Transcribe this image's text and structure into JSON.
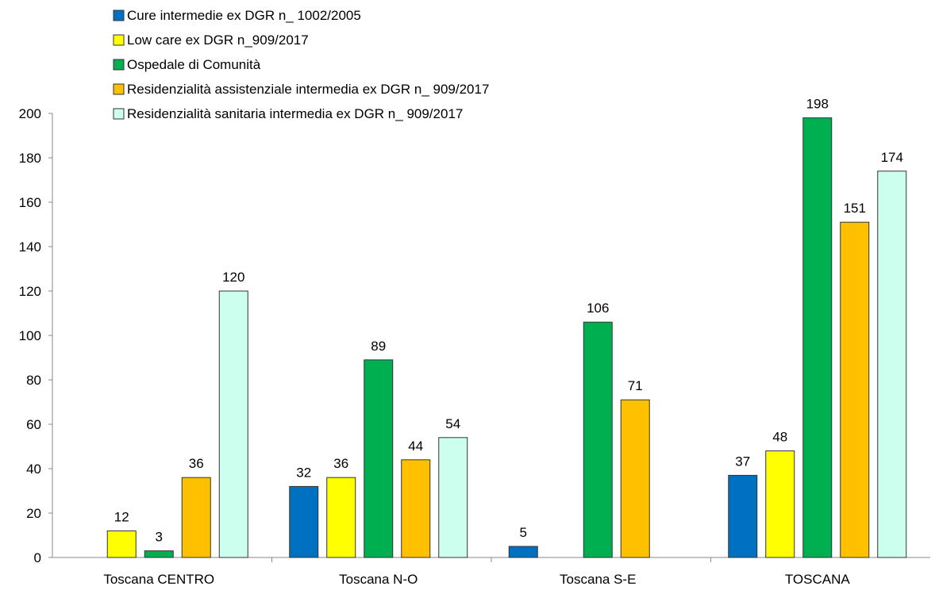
{
  "chart_data": {
    "type": "bar",
    "categories": [
      "Toscana CENTRO",
      "Toscana N-O",
      "Toscana S-E",
      "TOSCANA"
    ],
    "ylim": [
      0,
      200
    ],
    "yticks": [
      "0",
      "20",
      "40",
      "60",
      "80",
      "100",
      "120",
      "140",
      "160",
      "180",
      "200"
    ],
    "grid": false,
    "legend_position": "top-left",
    "series": [
      {
        "name": "Cure intermedie ex DGR n_ 1002/2005",
        "color": "#0070C0",
        "values": [
          null,
          32,
          5,
          37
        ],
        "labels": [
          "",
          "32",
          "5",
          "37"
        ]
      },
      {
        "name": "Low care ex DGR n_909/2017",
        "color": "#FFFF00",
        "values": [
          12,
          36,
          null,
          48
        ],
        "labels": [
          "12",
          "36",
          "",
          "48"
        ]
      },
      {
        "name": "Ospedale di Comunità",
        "color": "#00B050",
        "values": [
          3,
          89,
          106,
          198
        ],
        "labels": [
          "3",
          "89",
          "106",
          "198"
        ]
      },
      {
        "name": "Residenzialità assistenziale intermedia ex DGR n_ 909/2017",
        "color": "#FFC000",
        "values": [
          36,
          44,
          71,
          151
        ],
        "labels": [
          "36",
          "44",
          "71",
          "151"
        ]
      },
      {
        "name": "Residenzialità sanitaria intermedia  ex DGR n_ 909/2017",
        "color": "#CCFFEE",
        "values": [
          120,
          54,
          null,
          174
        ],
        "labels": [
          "120",
          "54",
          "",
          "174"
        ]
      }
    ]
  }
}
